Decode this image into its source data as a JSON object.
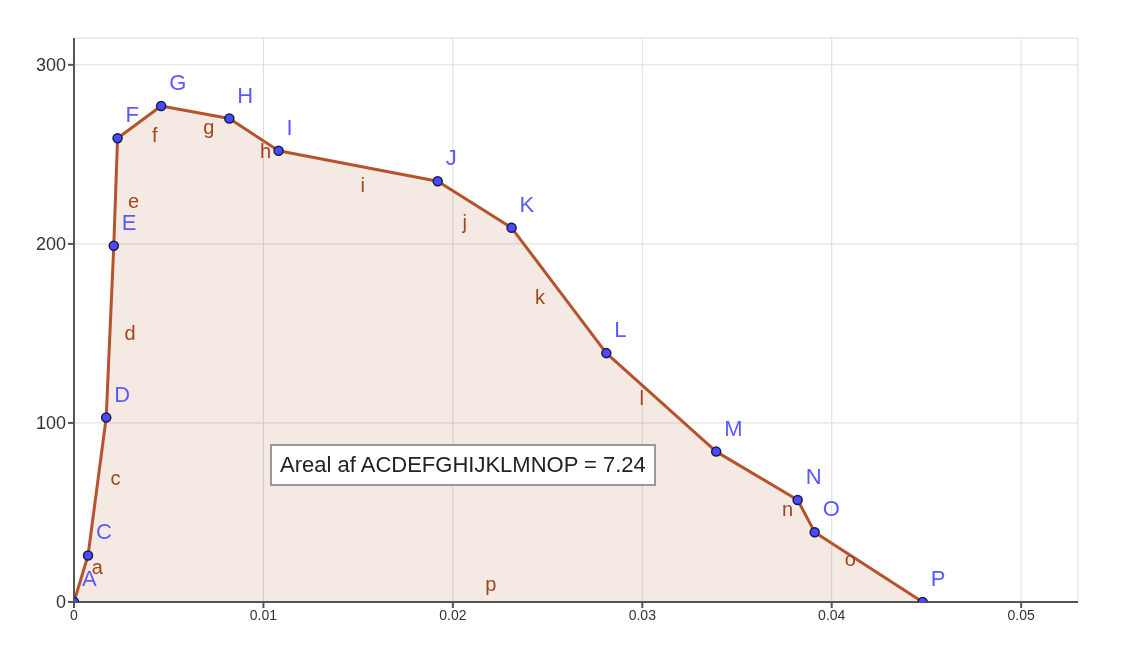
{
  "chart_data": {
    "type": "area",
    "x": [
      0,
      0.00074,
      0.0017,
      0.0021,
      0.0023,
      0.0046,
      0.0082,
      0.0108,
      0.0192,
      0.0231,
      0.0281,
      0.0339,
      0.0382,
      0.0391,
      0.0448
    ],
    "series": [
      {
        "color": "#b5532e",
        "values": [
          0,
          26,
          103,
          199,
          259,
          277,
          270,
          252,
          235,
          209,
          139,
          84,
          57,
          39,
          0
        ]
      },
      {
        "type": "scatter",
        "marker": "circle",
        "color": "#4a4aff",
        "values": [
          0,
          26,
          103,
          199,
          259,
          277,
          270,
          252,
          235,
          209,
          139,
          84,
          57,
          39,
          0
        ]
      }
    ],
    "grid": true,
    "xlim": [
      0,
      0.053
    ],
    "ylim": [
      0,
      315
    ],
    "xticks": [
      0,
      0.01,
      0.02,
      0.03,
      0.04,
      0.05
    ],
    "yticks": [
      0,
      100,
      200,
      300
    ],
    "annotations": [
      "Areal af  ACDEFGHIJKLMNOP = 7.24",
      {
        "text": "A",
        "x": 0,
        "y": 0
      },
      {
        "text": "C",
        "x": 0.00074,
        "y": 26
      },
      {
        "text": "D",
        "x": 0.0017,
        "y": 103
      },
      {
        "text": "E",
        "x": 0.0021,
        "y": 199
      },
      {
        "text": "F",
        "x": 0.0023,
        "y": 259
      },
      {
        "text": "G",
        "x": 0.0046,
        "y": 277
      },
      {
        "text": "H",
        "x": 0.0082,
        "y": 270
      },
      {
        "text": "I",
        "x": 0.0108,
        "y": 252
      },
      {
        "text": "J",
        "x": 0.0192,
        "y": 235
      },
      {
        "text": "K",
        "x": 0.0231,
        "y": 209
      },
      {
        "text": "L",
        "x": 0.0281,
        "y": 139
      },
      {
        "text": "M",
        "x": 0.0339,
        "y": 84
      },
      {
        "text": "N",
        "x": 0.0382,
        "y": 57
      },
      {
        "text": "O",
        "x": 0.0391,
        "y": 39
      },
      {
        "text": "P",
        "x": 0.0448,
        "y": 0
      },
      {
        "text": "a",
        "x": 0.00037,
        "y": 13
      },
      {
        "text": "c",
        "x": 0.00122,
        "y": 64.5
      },
      {
        "text": "d",
        "x": 0.0019,
        "y": 151
      },
      {
        "text": "e",
        "x": 0.0022,
        "y": 229
      },
      {
        "text": "f",
        "x": 0.00345,
        "y": 268
      },
      {
        "text": "g",
        "x": 0.0064,
        "y": 273.5
      },
      {
        "text": "h",
        "x": 0.0095,
        "y": 261
      },
      {
        "text": "i",
        "x": 0.015,
        "y": 243.5
      },
      {
        "text": "j",
        "x": 0.02115,
        "y": 222
      },
      {
        "text": "k",
        "x": 0.0256,
        "y": 174
      },
      {
        "text": "l",
        "x": 0.031,
        "y": 111.5
      },
      {
        "text": "n",
        "x": 0.03865,
        "y": 48
      },
      {
        "text": "o",
        "x": 0.04195,
        "y": 19.5
      },
      {
        "text": "p",
        "x": 0.0224,
        "y": 0
      }
    ]
  }
}
